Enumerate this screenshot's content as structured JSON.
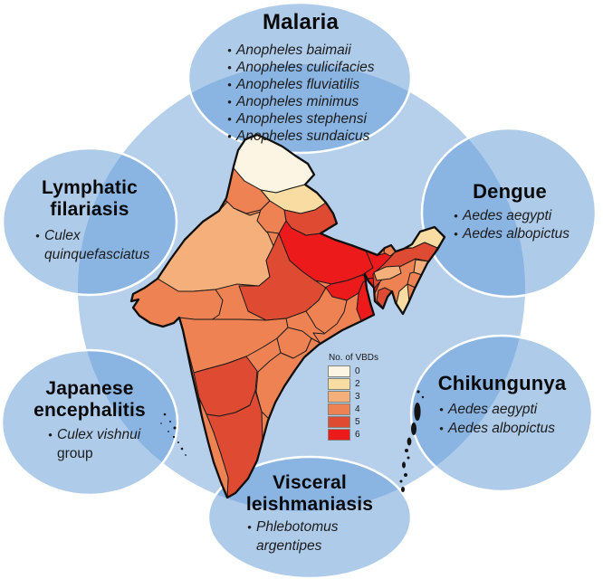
{
  "figure": {
    "subject": "India",
    "palette": {
      "circle_fill": "#B6D0EC",
      "ellipse_fill": "#5D97D5",
      "ellipse_stroke": "#FFFFFF",
      "map_border": "#141414"
    }
  },
  "diseases": {
    "malaria": {
      "name": "Malaria",
      "vectors": [
        {
          "species": "Anopheles baimaii"
        },
        {
          "species": "Anopheles culicifacies"
        },
        {
          "species": "Anopheles fluviatilis"
        },
        {
          "species": "Anopheles minimus"
        },
        {
          "species": "Anopheles stephensi"
        },
        {
          "species": "Anopheles sundaicus"
        }
      ]
    },
    "dengue": {
      "name": "Dengue",
      "vectors": [
        {
          "species": "Aedes aegypti"
        },
        {
          "species": "Aedes albopictus"
        }
      ]
    },
    "chikungunya": {
      "name": "Chikungunya",
      "vectors": [
        {
          "species": "Aedes aegypti"
        },
        {
          "species": "Aedes albopictus"
        }
      ]
    },
    "visceral_leishmaniasis": {
      "name": "Visceral leishmaniasis",
      "vectors": [
        {
          "species": "Phlebotomus argentipes"
        }
      ]
    },
    "japanese_encephalitis": {
      "name": "Japanese encephalitis",
      "vectors": [
        {
          "species": "Culex vishnui",
          "suffix": "group"
        }
      ]
    },
    "lymphatic_filariasis": {
      "name": "Lymphatic filariasis",
      "vectors": [
        {
          "species": "Culex quinquefasciatus"
        }
      ]
    }
  },
  "legend": {
    "title": "No. of VBDs",
    "items": [
      {
        "label": "0",
        "color": "#FCF5E3"
      },
      {
        "label": "2",
        "color": "#F9DCA2"
      },
      {
        "label": "3",
        "color": "#F5AF7A"
      },
      {
        "label": "4",
        "color": "#EF8252"
      },
      {
        "label": "5",
        "color": "#DF4A32"
      },
      {
        "label": "6",
        "color": "#EC1A1A"
      }
    ]
  },
  "map": {
    "type": "choropleth",
    "region": "India",
    "value_label": "No. of VBDs",
    "states": [
      {
        "id": "jammu-kashmir",
        "vbds": 0
      },
      {
        "id": "himachal-pradesh",
        "vbds": 2
      },
      {
        "id": "punjab",
        "vbds": 4
      },
      {
        "id": "haryana",
        "vbds": 4
      },
      {
        "id": "uttarakhand",
        "vbds": 5
      },
      {
        "id": "rajasthan",
        "vbds": 3
      },
      {
        "id": "gujarat",
        "vbds": 4
      },
      {
        "id": "uttar-pradesh",
        "vbds": 6
      },
      {
        "id": "bihar",
        "vbds": 6
      },
      {
        "id": "sikkim",
        "vbds": 4
      },
      {
        "id": "west-bengal",
        "vbds": 6
      },
      {
        "id": "jharkhand",
        "vbds": 6
      },
      {
        "id": "madhya-pradesh",
        "vbds": 5
      },
      {
        "id": "chhattisgarh",
        "vbds": 4
      },
      {
        "id": "odisha",
        "vbds": 4
      },
      {
        "id": "maharashtra",
        "vbds": 4
      },
      {
        "id": "telangana",
        "vbds": 4
      },
      {
        "id": "andhra-pradesh",
        "vbds": 4
      },
      {
        "id": "karnataka",
        "vbds": 5
      },
      {
        "id": "kerala",
        "vbds": 4
      },
      {
        "id": "tamil-nadu",
        "vbds": 5
      },
      {
        "id": "arunachal-pradesh",
        "vbds": 2
      },
      {
        "id": "assam",
        "vbds": 5
      },
      {
        "id": "meghalaya",
        "vbds": 3
      },
      {
        "id": "nagaland",
        "vbds": 3
      },
      {
        "id": "manipur",
        "vbds": 4
      },
      {
        "id": "mizoram",
        "vbds": 2
      },
      {
        "id": "tripura",
        "vbds": 5
      }
    ]
  }
}
